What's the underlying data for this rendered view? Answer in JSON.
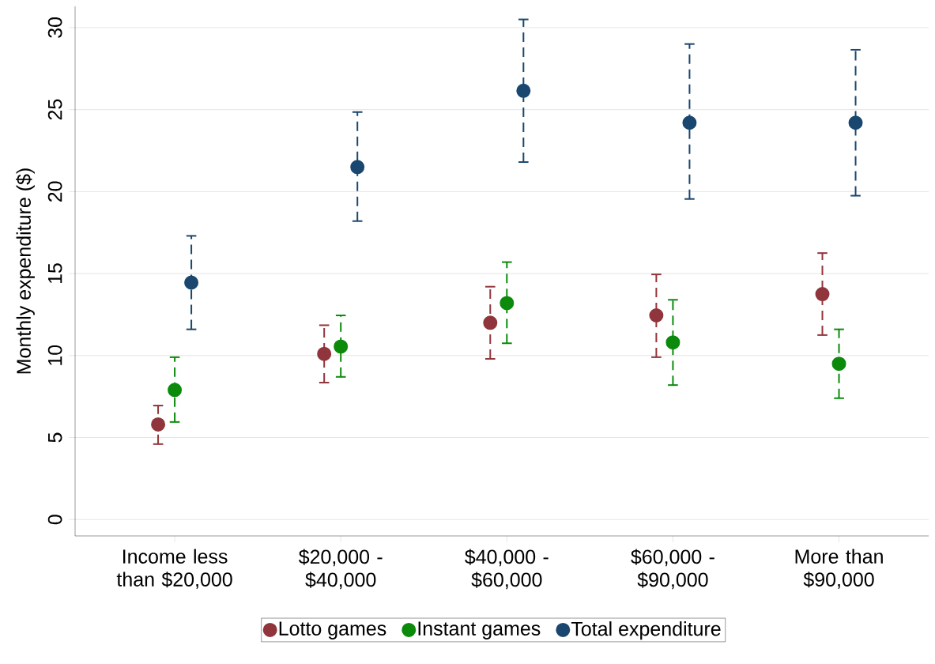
{
  "chart_data": {
    "type": "scatter",
    "ylabel": "Monthly expenditure ($)",
    "categories": [
      "Income less than $20,000",
      "$20,000 - $40,000",
      "$40,000 - $60,000",
      "$60,000 - $90,000",
      "More than $90,000"
    ],
    "series": [
      {
        "name": "Lotto games",
        "color": "#90353b",
        "values": [
          5.8,
          10.1,
          12.0,
          12.45,
          13.75
        ],
        "errors": [
          [
            4.6,
            6.95
          ],
          [
            8.35,
            11.85
          ],
          [
            9.8,
            14.2
          ],
          [
            9.9,
            14.95
          ],
          [
            11.25,
            16.25
          ]
        ]
      },
      {
        "name": "Instant games",
        "color": "#0c8a0c",
        "values": [
          7.9,
          10.55,
          13.2,
          10.8,
          9.5
        ],
        "errors": [
          [
            5.95,
            9.9
          ],
          [
            8.7,
            12.45
          ],
          [
            10.75,
            15.7
          ],
          [
            8.2,
            13.4
          ],
          [
            7.4,
            11.6
          ]
        ]
      },
      {
        "name": "Total expenditure",
        "color": "#1a476f",
        "values": [
          14.45,
          21.5,
          26.15,
          24.2,
          24.2
        ],
        "errors": [
          [
            11.6,
            17.3
          ],
          [
            18.2,
            24.85
          ],
          [
            21.8,
            30.5
          ],
          [
            19.55,
            29.0
          ],
          [
            19.75,
            28.65
          ]
        ]
      }
    ],
    "ylim": [
      -1,
      31.3
    ],
    "yticks": [
      0,
      5,
      10,
      15,
      20,
      25,
      30
    ],
    "grid": "y",
    "legend": "bottom"
  }
}
